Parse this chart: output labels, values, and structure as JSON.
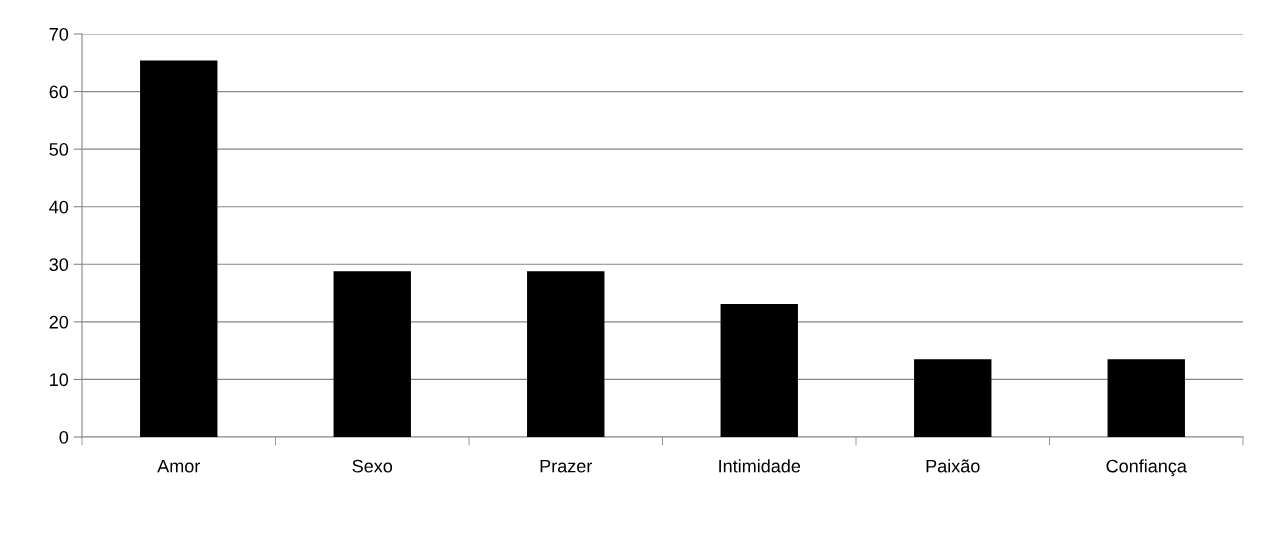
{
  "chart_data": {
    "type": "bar",
    "categories": [
      "Amor",
      "Sexo",
      "Prazer",
      "Intimidade",
      "Paixão",
      "Confiança"
    ],
    "values": [
      65.4,
      28.8,
      28.8,
      23.1,
      13.5,
      13.5
    ],
    "color": "#000000",
    "ylim": [
      0,
      70
    ],
    "yticks": [
      0,
      10,
      20,
      30,
      40,
      50,
      60,
      70
    ],
    "grid": "y"
  }
}
